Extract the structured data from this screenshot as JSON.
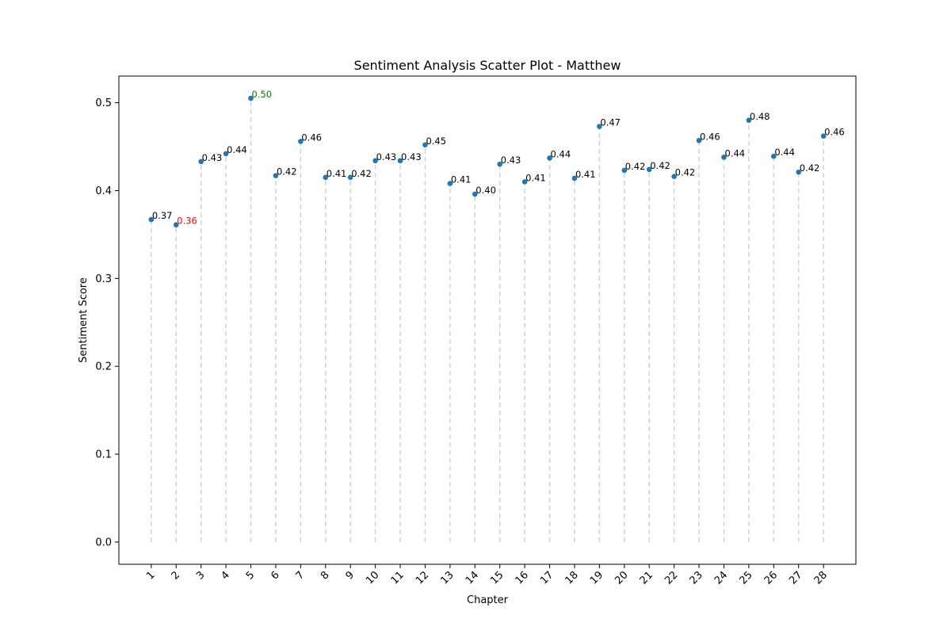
{
  "chart_data": {
    "type": "scatter",
    "title": "Sentiment Analysis Scatter Plot - Matthew",
    "xlabel": "Chapter",
    "ylabel": "Sentiment Score",
    "x": [
      1,
      2,
      3,
      4,
      5,
      6,
      7,
      8,
      9,
      10,
      11,
      12,
      13,
      14,
      15,
      16,
      17,
      18,
      19,
      20,
      21,
      22,
      23,
      24,
      25,
      26,
      27,
      28
    ],
    "y": [
      0.367,
      0.361,
      0.433,
      0.442,
      0.505,
      0.417,
      0.456,
      0.415,
      0.415,
      0.434,
      0.434,
      0.452,
      0.408,
      0.396,
      0.43,
      0.41,
      0.437,
      0.414,
      0.473,
      0.423,
      0.424,
      0.416,
      0.457,
      0.438,
      0.48,
      0.439,
      0.421,
      0.462
    ],
    "labels": [
      "0.37",
      "0.36",
      "0.43",
      "0.44",
      "0.50",
      "0.42",
      "0.46",
      "0.41",
      "0.42",
      "0.43",
      "0.43",
      "0.45",
      "0.41",
      "0.40",
      "0.43",
      "0.41",
      "0.44",
      "0.41",
      "0.47",
      "0.42",
      "0.42",
      "0.42",
      "0.46",
      "0.44",
      "0.48",
      "0.44",
      "0.42",
      "0.46"
    ],
    "label_colors": [
      "#000000",
      "#ff0000",
      "#000000",
      "#000000",
      "#008000",
      "#000000",
      "#000000",
      "#000000",
      "#000000",
      "#000000",
      "#000000",
      "#000000",
      "#000000",
      "#000000",
      "#000000",
      "#000000",
      "#000000",
      "#000000",
      "#000000",
      "#000000",
      "#000000",
      "#000000",
      "#000000",
      "#000000",
      "#000000",
      "#000000",
      "#000000",
      "#000000"
    ],
    "x_tick_labels": [
      "1",
      "2",
      "3",
      "4",
      "5",
      "6",
      "7",
      "8",
      "9",
      "10",
      "11",
      "12",
      "13",
      "14",
      "15",
      "16",
      "17",
      "18",
      "19",
      "20",
      "21",
      "22",
      "23",
      "24",
      "25",
      "26",
      "27",
      "28"
    ],
    "y_ticks": [
      0.0,
      0.1,
      0.2,
      0.3,
      0.4,
      0.5
    ],
    "y_tick_labels": [
      "0.0",
      "0.1",
      "0.2",
      "0.3",
      "0.4",
      "0.5"
    ],
    "xlim": [
      -0.3,
      29.3
    ],
    "ylim": [
      -0.0253,
      0.5303
    ],
    "grid": false,
    "stem_lines": true,
    "point_color": "#1f77b4",
    "stem_color": "#d3d3d3"
  }
}
